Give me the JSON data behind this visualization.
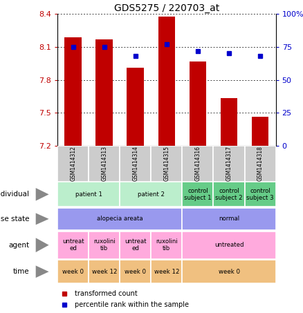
{
  "title": "GDS5275 / 220703_at",
  "samples": [
    "GSM1414312",
    "GSM1414313",
    "GSM1414314",
    "GSM1414315",
    "GSM1414316",
    "GSM1414317",
    "GSM1414318"
  ],
  "bar_values": [
    8.19,
    8.17,
    7.91,
    8.38,
    7.97,
    7.63,
    7.46
  ],
  "dot_values": [
    75,
    75,
    68,
    77,
    72,
    70,
    68
  ],
  "ylim_left": [
    7.2,
    8.4
  ],
  "ylim_right": [
    0,
    100
  ],
  "yticks_left": [
    7.2,
    7.5,
    7.8,
    8.1,
    8.4
  ],
  "yticks_right": [
    0,
    25,
    50,
    75,
    100
  ],
  "bar_color": "#c00000",
  "dot_color": "#0000cc",
  "bar_bottom": 7.2,
  "rows": {
    "individual": {
      "label": "individual",
      "cells": [
        {
          "text": "patient 1",
          "span": 2,
          "color": "#bbeecc"
        },
        {
          "text": "patient 2",
          "span": 2,
          "color": "#bbeecc"
        },
        {
          "text": "control\nsubject 1",
          "span": 1,
          "color": "#66cc88"
        },
        {
          "text": "control\nsubject 2",
          "span": 1,
          "color": "#66cc88"
        },
        {
          "text": "control\nsubject 3",
          "span": 1,
          "color": "#66cc88"
        }
      ]
    },
    "disease_state": {
      "label": "disease state",
      "cells": [
        {
          "text": "alopecia areata",
          "span": 4,
          "color": "#9999ee"
        },
        {
          "text": "normal",
          "span": 3,
          "color": "#9999ee"
        }
      ]
    },
    "agent": {
      "label": "agent",
      "cells": [
        {
          "text": "untreat\ned",
          "span": 1,
          "color": "#ffaadd"
        },
        {
          "text": "ruxolini\ntib",
          "span": 1,
          "color": "#ffaadd"
        },
        {
          "text": "untreat\ned",
          "span": 1,
          "color": "#ffaadd"
        },
        {
          "text": "ruxolini\ntib",
          "span": 1,
          "color": "#ffaadd"
        },
        {
          "text": "untreated",
          "span": 3,
          "color": "#ffaadd"
        }
      ]
    },
    "time": {
      "label": "time",
      "cells": [
        {
          "text": "week 0",
          "span": 1,
          "color": "#f0c080"
        },
        {
          "text": "week 12",
          "span": 1,
          "color": "#f0c080"
        },
        {
          "text": "week 0",
          "span": 1,
          "color": "#f0c080"
        },
        {
          "text": "week 12",
          "span": 1,
          "color": "#f0c080"
        },
        {
          "text": "week 0",
          "span": 3,
          "color": "#f0c080"
        }
      ]
    }
  },
  "legend": [
    {
      "color": "#c00000",
      "label": "transformed count"
    },
    {
      "color": "#0000cc",
      "label": "percentile rank within the sample"
    }
  ],
  "figsize": [
    4.38,
    4.53
  ],
  "dpi": 100
}
